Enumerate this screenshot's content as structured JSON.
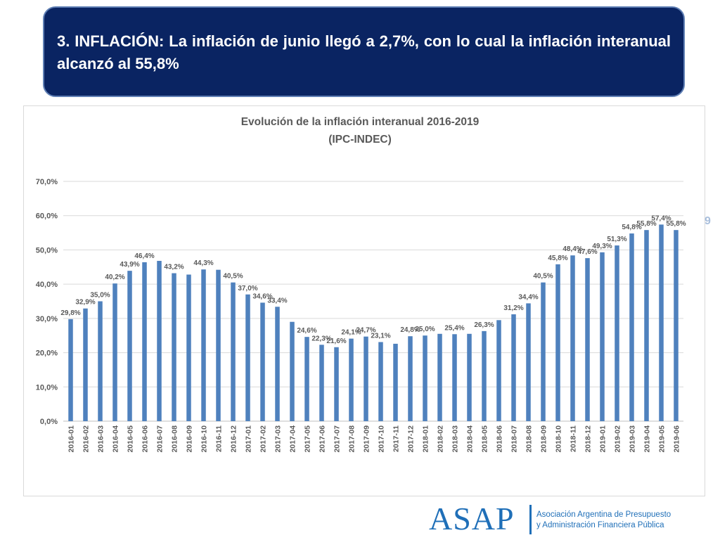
{
  "header": {
    "text": "3. INFLACIÓN:  La inflación de junio llegó a 2,7%,  con lo cual la inflación interanual alcanzó al 55,8%"
  },
  "chart_data": {
    "type": "bar",
    "title": "Evolución de la inflación interanual 2016-2019",
    "subtitle": "(IPC-INDEC)",
    "xlabel": "",
    "ylabel": "",
    "ylim": [
      0,
      70
    ],
    "yticks": [
      "0,0%",
      "10,0%",
      "20,0%",
      "30,0%",
      "40,0%",
      "50,0%",
      "60,0%",
      "70,0%"
    ],
    "grid": true,
    "legend": "none",
    "bar_color": "#4f81bd",
    "categories": [
      "2016-01",
      "2016-02",
      "2016-03",
      "2016-04",
      "2016-05",
      "2016-06",
      "2016-07",
      "2016-08",
      "2016-09",
      "2016-10",
      "2016-11",
      "2016-12",
      "2017-01",
      "2017-02",
      "2017-03",
      "2017-04",
      "2017-05",
      "2017-06",
      "2017-07",
      "2017-08",
      "2017-09",
      "2017-10",
      "2017-11",
      "2017-12",
      "2018-01",
      "2018-02",
      "2018-03",
      "2018-04",
      "2018-05",
      "2018-06",
      "2018-07",
      "2018-08",
      "2018-09",
      "2018-10",
      "2018-11",
      "2018-12",
      "2019-01",
      "2019-02",
      "2019-03",
      "2019-04",
      "2019-05",
      "2019-06"
    ],
    "values": [
      29.8,
      32.9,
      35.0,
      40.2,
      43.9,
      46.4,
      46.8,
      43.2,
      42.8,
      44.3,
      44.2,
      40.5,
      37.0,
      34.6,
      33.4,
      29.0,
      24.6,
      22.3,
      21.6,
      24.1,
      24.7,
      23.1,
      22.6,
      24.8,
      25.0,
      25.5,
      25.4,
      25.5,
      26.3,
      29.5,
      31.2,
      34.4,
      40.5,
      45.8,
      48.4,
      47.6,
      49.3,
      51.3,
      54.8,
      55.8,
      57.4,
      55.8
    ],
    "data_labels": [
      "29,8%",
      "32,9%",
      "35,0%",
      "40,2%",
      "43,9%",
      "46,4%",
      "",
      "43,2%",
      "",
      "44,3%",
      "",
      "40,5%",
      "37,0%",
      "34,6%",
      "33,4%",
      "",
      "24,6%",
      "22,3%",
      "21,6%",
      "24,1%",
      "24,7%",
      "23,1%",
      "",
      "24,8%",
      "25,0%",
      "",
      "25,4%",
      "",
      "26,3%",
      "",
      "31,2%",
      "34,4%",
      "40,5%",
      "45,8%",
      "48,4%",
      "47,6%",
      "49,3%",
      "51,3%",
      "54,8%",
      "55,8%",
      "57,4%",
      "55,8%"
    ]
  },
  "side_text": "9",
  "logo": {
    "wordmark": "ASAP",
    "line1": "Asociación Argentina de Presupuesto",
    "line2": "y Administración Financiera Pública"
  }
}
